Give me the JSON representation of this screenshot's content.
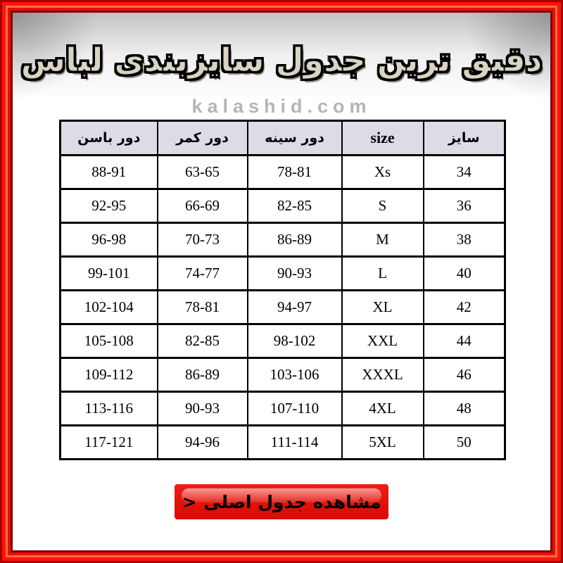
{
  "title": "دقیق ترین جدول سایزبندی لباس",
  "watermark": "kalashid.com",
  "table": {
    "headers": [
      "سایز",
      "size",
      "دور سینه",
      "دور کمر",
      "دور باسن"
    ],
    "latin_header_index": 1,
    "rows": [
      [
        "34",
        "Xs",
        "78-81",
        "63-65",
        "88-91"
      ],
      [
        "36",
        "S",
        "82-85",
        "66-69",
        "92-95"
      ],
      [
        "38",
        "M",
        "86-89",
        "70-73",
        "96-98"
      ],
      [
        "40",
        "L",
        "90-93",
        "74-77",
        "99-101"
      ],
      [
        "42",
        "XL",
        "94-97",
        "78-81",
        "102-104"
      ],
      [
        "44",
        "XXL",
        "98-102",
        "82-85",
        "105-108"
      ],
      [
        "46",
        "XXXL",
        "103-106",
        "86-89",
        "109-112"
      ],
      [
        "48",
        "4XL",
        "107-110",
        "90-93",
        "113-116"
      ],
      [
        "50",
        "5XL",
        "111-114",
        "94-96",
        "117-121"
      ]
    ]
  },
  "button": {
    "label": "مشاهده جدول اصلی",
    "chevron": ">"
  },
  "colors": {
    "frame_red": "#ff1400",
    "frame_dark_red": "#7e0000",
    "button_red": "#e11208",
    "table_header_bg": "#dcdbe6",
    "title_fill": "#d9d4c2",
    "watermark_gray": "#b5b5b5"
  }
}
